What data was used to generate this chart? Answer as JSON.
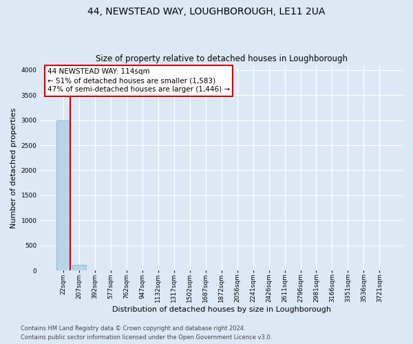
{
  "title": "44, NEWSTEAD WAY, LOUGHBOROUGH, LE11 2UA",
  "subtitle": "Size of property relative to detached houses in Loughborough",
  "xlabel": "Distribution of detached houses by size in Loughborough",
  "ylabel": "Number of detached properties",
  "categories": [
    "22sqm",
    "207sqm",
    "392sqm",
    "577sqm",
    "762sqm",
    "947sqm",
    "1132sqm",
    "1317sqm",
    "1502sqm",
    "1687sqm",
    "1872sqm",
    "2056sqm",
    "2241sqm",
    "2426sqm",
    "2611sqm",
    "2796sqm",
    "2981sqm",
    "3166sqm",
    "3351sqm",
    "3536sqm",
    "3721sqm"
  ],
  "bar_heights": [
    3000,
    110,
    0,
    0,
    0,
    0,
    0,
    0,
    0,
    0,
    0,
    0,
    0,
    0,
    0,
    0,
    0,
    0,
    0,
    0,
    0
  ],
  "bar_color": "#b8d4e8",
  "bar_edge_color": "#7aaec8",
  "ylim": [
    0,
    4100
  ],
  "yticks": [
    0,
    500,
    1000,
    1500,
    2000,
    2500,
    3000,
    3500,
    4000
  ],
  "annotation_line1": "44 NEWSTEAD WAY: 114sqm",
  "annotation_line2": "← 51% of detached houses are smaller (1,583)",
  "annotation_line3": "47% of semi-detached houses are larger (1,446) →",
  "annotation_box_color": "#ffffff",
  "annotation_box_edge_color": "#cc0000",
  "vline_color": "#cc0000",
  "footnote1": "Contains HM Land Registry data © Crown copyright and database right 2024.",
  "footnote2": "Contains public sector information licensed under the Open Government Licence v3.0.",
  "background_color": "#dce9f5",
  "plot_bg_color": "#dce9f5",
  "grid_color": "#ffffff",
  "title_fontsize": 10,
  "subtitle_fontsize": 8.5,
  "tick_fontsize": 6.5,
  "ylabel_fontsize": 8,
  "xlabel_fontsize": 8,
  "annot_fontsize": 7.5,
  "footnote_fontsize": 6
}
